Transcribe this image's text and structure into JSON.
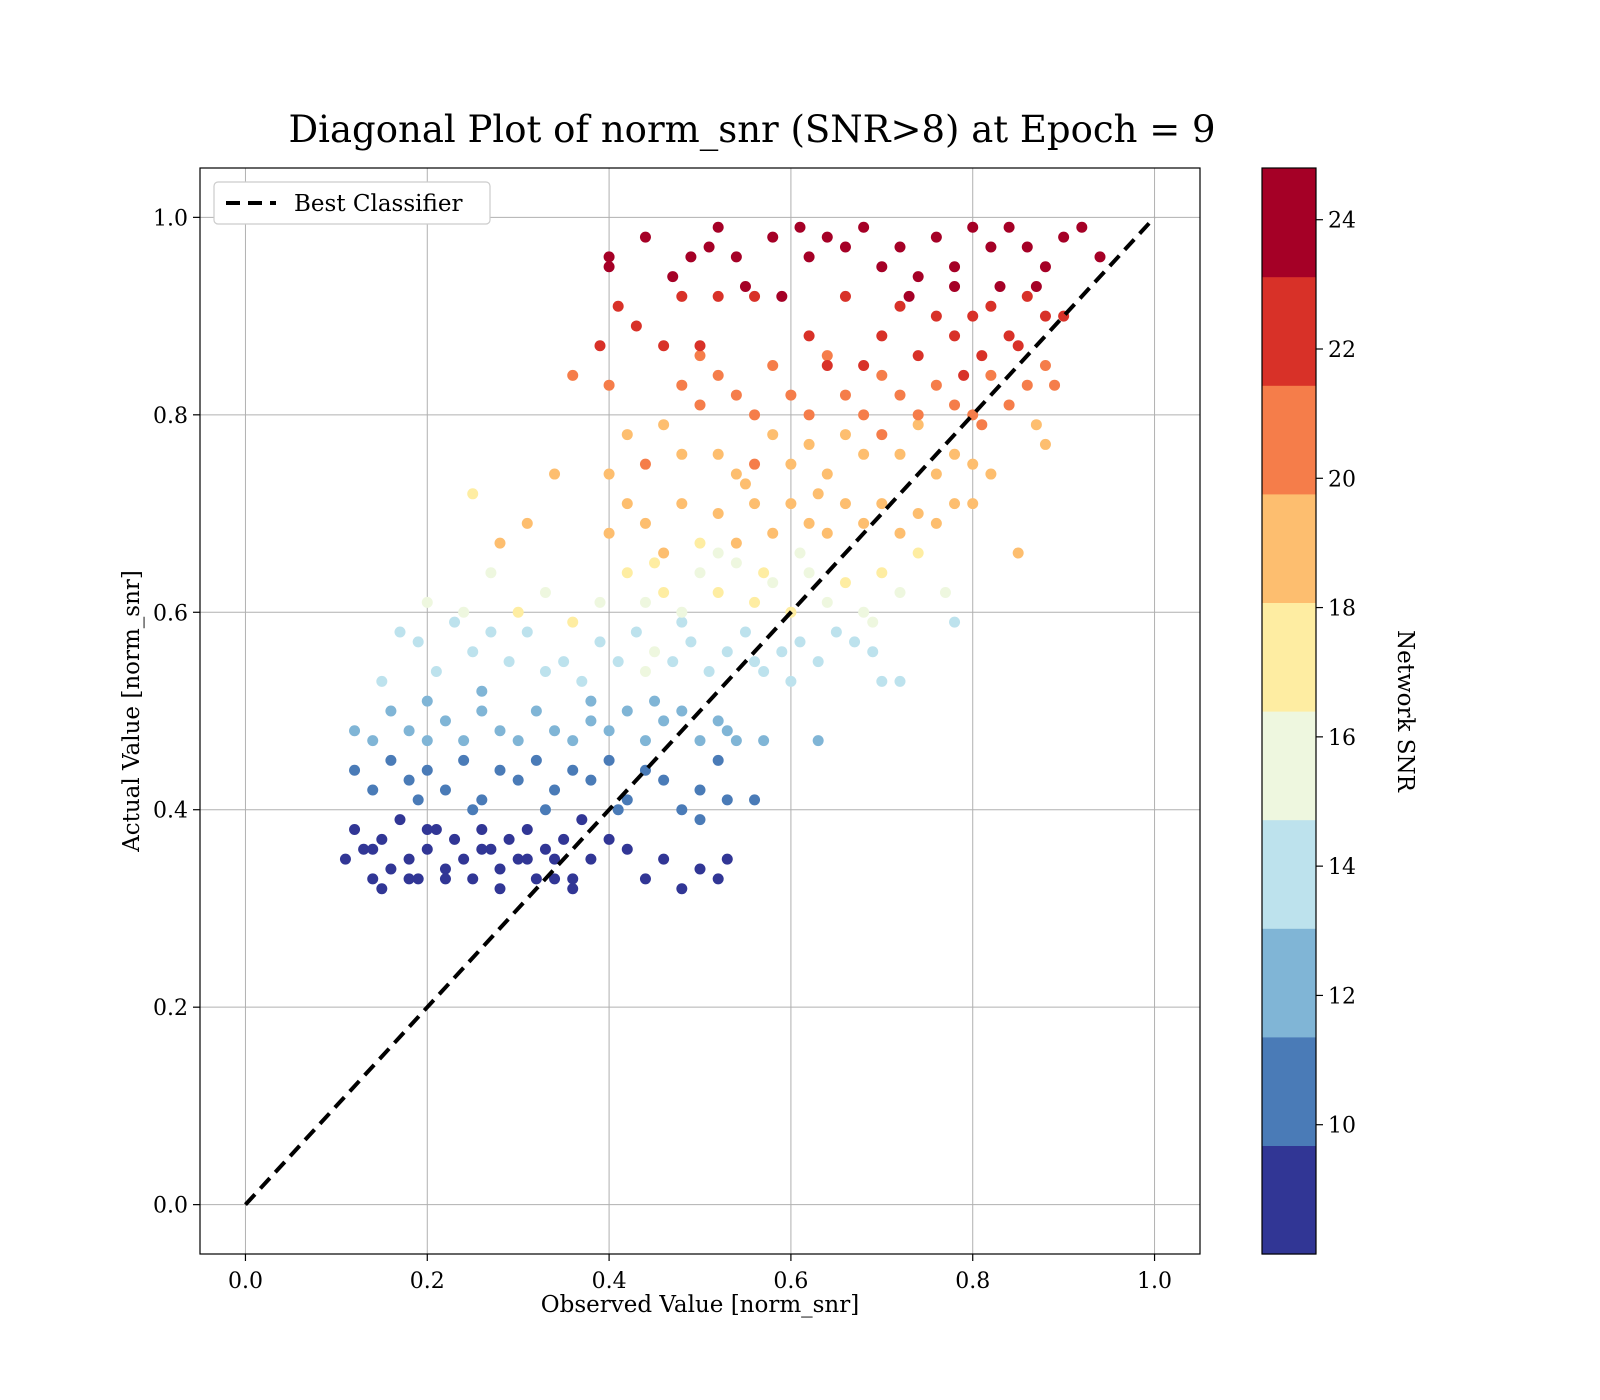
{
  "chart_data": {
    "type": "scatter",
    "title": "Diagonal Plot of norm_snr (SNR>8) at Epoch = 9",
    "xlabel": "Observed Value [norm_snr]",
    "ylabel": "Actual Value [norm_snr]",
    "xlim": [
      -0.05,
      1.05
    ],
    "ylim": [
      -0.05,
      1.05
    ],
    "xticks": [
      "0.0",
      "0.2",
      "0.4",
      "0.6",
      "0.8",
      "1.0"
    ],
    "yticks": [
      "0.0",
      "0.2",
      "0.4",
      "0.6",
      "0.8",
      "1.0"
    ],
    "grid": true,
    "legend": {
      "placement": "top-left",
      "entries": [
        "Best Classifier"
      ]
    },
    "reference_line": {
      "name": "Best Classifier",
      "style": "dashed",
      "color": "#000000",
      "x": [
        0.0,
        1.0
      ],
      "y": [
        0.0,
        1.0
      ]
    },
    "colorbar": {
      "label": "Network SNR",
      "range": [
        8,
        24.8
      ],
      "ticks": [
        "10",
        "12",
        "14",
        "16",
        "18",
        "20",
        "22",
        "24"
      ],
      "tick_values": [
        10,
        12,
        14,
        16,
        18,
        20,
        22,
        24
      ],
      "colors": [
        "#313695",
        "#4a7bb7",
        "#80b5d6",
        "#bde2ed",
        "#eef7df",
        "#feeda2",
        "#fdbe6f",
        "#f57d4a",
        "#d83128",
        "#a50026"
      ]
    },
    "points": [
      [
        0.11,
        0.35,
        8.5
      ],
      [
        0.12,
        0.38,
        8.4
      ],
      [
        0.13,
        0.36,
        8.6
      ],
      [
        0.14,
        0.33,
        8.3
      ],
      [
        0.15,
        0.37,
        8.7
      ],
      [
        0.16,
        0.34,
        8.2
      ],
      [
        0.17,
        0.39,
        8.8
      ],
      [
        0.18,
        0.35,
        8.5
      ],
      [
        0.19,
        0.33,
        8.4
      ],
      [
        0.2,
        0.36,
        8.9
      ],
      [
        0.21,
        0.38,
        8.6
      ],
      [
        0.22,
        0.34,
        8.3
      ],
      [
        0.23,
        0.37,
        8.7
      ],
      [
        0.24,
        0.35,
        8.5
      ],
      [
        0.25,
        0.33,
        8.2
      ],
      [
        0.26,
        0.38,
        8.8
      ],
      [
        0.27,
        0.36,
        8.4
      ],
      [
        0.28,
        0.34,
        8.9
      ],
      [
        0.29,
        0.37,
        8.6
      ],
      [
        0.3,
        0.35,
        8.3
      ],
      [
        0.31,
        0.38,
        8.7
      ],
      [
        0.32,
        0.33,
        8.5
      ],
      [
        0.33,
        0.36,
        8.8
      ],
      [
        0.34,
        0.35,
        8.4
      ],
      [
        0.35,
        0.37,
        8.6
      ],
      [
        0.36,
        0.33,
        8.2
      ],
      [
        0.37,
        0.39,
        8.9
      ],
      [
        0.38,
        0.35,
        8.5
      ],
      [
        0.4,
        0.37,
        8.7
      ],
      [
        0.42,
        0.36,
        8.3
      ],
      [
        0.44,
        0.33,
        8.6
      ],
      [
        0.46,
        0.35,
        8.4
      ],
      [
        0.48,
        0.32,
        8.8
      ],
      [
        0.5,
        0.34,
        8.5
      ],
      [
        0.52,
        0.33,
        8.2
      ],
      [
        0.53,
        0.35,
        8.7
      ],
      [
        0.15,
        0.32,
        8.3
      ],
      [
        0.18,
        0.33,
        8.6
      ],
      [
        0.22,
        0.33,
        8.4
      ],
      [
        0.28,
        0.32,
        8.5
      ],
      [
        0.34,
        0.33,
        8.7
      ],
      [
        0.36,
        0.32,
        8.3
      ],
      [
        0.14,
        0.36,
        8.9
      ],
      [
        0.2,
        0.38,
        8.4
      ],
      [
        0.26,
        0.36,
        8.6
      ],
      [
        0.31,
        0.35,
        8.8
      ],
      [
        0.12,
        0.44,
        10.1
      ],
      [
        0.14,
        0.42,
        10.5
      ],
      [
        0.16,
        0.45,
        10.3
      ],
      [
        0.18,
        0.43,
        10.7
      ],
      [
        0.2,
        0.44,
        10.2
      ],
      [
        0.22,
        0.42,
        10.8
      ],
      [
        0.24,
        0.45,
        10.4
      ],
      [
        0.26,
        0.41,
        10.6
      ],
      [
        0.28,
        0.44,
        10.1
      ],
      [
        0.3,
        0.43,
        10.9
      ],
      [
        0.32,
        0.45,
        10.3
      ],
      [
        0.34,
        0.42,
        10.5
      ],
      [
        0.36,
        0.44,
        10.7
      ],
      [
        0.38,
        0.43,
        10.2
      ],
      [
        0.4,
        0.45,
        10.6
      ],
      [
        0.42,
        0.41,
        10.4
      ],
      [
        0.44,
        0.44,
        10.8
      ],
      [
        0.46,
        0.43,
        10.3
      ],
      [
        0.48,
        0.4,
        10.5
      ],
      [
        0.5,
        0.42,
        10.7
      ],
      [
        0.52,
        0.45,
        10.2
      ],
      [
        0.53,
        0.41,
        10.6
      ],
      [
        0.56,
        0.41,
        10.4
      ],
      [
        0.19,
        0.41,
        10.9
      ],
      [
        0.25,
        0.4,
        10.3
      ],
      [
        0.33,
        0.4,
        10.6
      ],
      [
        0.41,
        0.4,
        10.2
      ],
      [
        0.5,
        0.39,
        10.8
      ],
      [
        0.12,
        0.48,
        12.0
      ],
      [
        0.14,
        0.47,
        12.4
      ],
      [
        0.16,
        0.5,
        12.2
      ],
      [
        0.18,
        0.48,
        12.6
      ],
      [
        0.2,
        0.47,
        12.1
      ],
      [
        0.22,
        0.49,
        12.7
      ],
      [
        0.24,
        0.47,
        12.3
      ],
      [
        0.26,
        0.5,
        12.5
      ],
      [
        0.28,
        0.48,
        12.0
      ],
      [
        0.3,
        0.47,
        12.8
      ],
      [
        0.32,
        0.5,
        12.2
      ],
      [
        0.34,
        0.48,
        12.4
      ],
      [
        0.36,
        0.47,
        12.6
      ],
      [
        0.38,
        0.49,
        12.1
      ],
      [
        0.4,
        0.48,
        12.5
      ],
      [
        0.42,
        0.5,
        12.3
      ],
      [
        0.44,
        0.47,
        12.7
      ],
      [
        0.46,
        0.49,
        12.2
      ],
      [
        0.48,
        0.5,
        12.4
      ],
      [
        0.5,
        0.47,
        12.6
      ],
      [
        0.52,
        0.49,
        12.1
      ],
      [
        0.54,
        0.47,
        12.5
      ],
      [
        0.57,
        0.47,
        12.3
      ],
      [
        0.63,
        0.47,
        12.8
      ],
      [
        0.2,
        0.51,
        12.2
      ],
      [
        0.26,
        0.52,
        12.6
      ],
      [
        0.38,
        0.51,
        12.4
      ],
      [
        0.45,
        0.51,
        12.7
      ],
      [
        0.53,
        0.48,
        12.0
      ],
      [
        0.15,
        0.53,
        14.0
      ],
      [
        0.17,
        0.58,
        14.3
      ],
      [
        0.19,
        0.57,
        14.1
      ],
      [
        0.21,
        0.54,
        14.5
      ],
      [
        0.23,
        0.59,
        14.2
      ],
      [
        0.25,
        0.56,
        14.6
      ],
      [
        0.27,
        0.58,
        14.4
      ],
      [
        0.29,
        0.55,
        14.0
      ],
      [
        0.31,
        0.58,
        14.7
      ],
      [
        0.33,
        0.54,
        14.3
      ],
      [
        0.35,
        0.55,
        14.5
      ],
      [
        0.37,
        0.53,
        14.1
      ],
      [
        0.39,
        0.57,
        14.6
      ],
      [
        0.41,
        0.55,
        14.2
      ],
      [
        0.43,
        0.58,
        14.4
      ],
      [
        0.45,
        0.56,
        14.8
      ],
      [
        0.47,
        0.55,
        14.3
      ],
      [
        0.49,
        0.57,
        14.5
      ],
      [
        0.51,
        0.54,
        14.1
      ],
      [
        0.53,
        0.56,
        14.7
      ],
      [
        0.55,
        0.58,
        14.2
      ],
      [
        0.57,
        0.54,
        14.6
      ],
      [
        0.59,
        0.56,
        14.4
      ],
      [
        0.61,
        0.57,
        14.0
      ],
      [
        0.63,
        0.55,
        14.5
      ],
      [
        0.65,
        0.58,
        14.3
      ],
      [
        0.67,
        0.57,
        14.7
      ],
      [
        0.69,
        0.56,
        14.1
      ],
      [
        0.7,
        0.53,
        14.4
      ],
      [
        0.72,
        0.53,
        14.6
      ],
      [
        0.78,
        0.59,
        14.2
      ],
      [
        0.44,
        0.54,
        14.8
      ],
      [
        0.48,
        0.59,
        14.3
      ],
      [
        0.56,
        0.55,
        14.5
      ],
      [
        0.6,
        0.53,
        14.1
      ],
      [
        0.2,
        0.61,
        16.0
      ],
      [
        0.24,
        0.6,
        16.4
      ],
      [
        0.27,
        0.64,
        16.2
      ],
      [
        0.3,
        0.6,
        16.6
      ],
      [
        0.33,
        0.62,
        16.1
      ],
      [
        0.36,
        0.59,
        16.7
      ],
      [
        0.39,
        0.61,
        16.3
      ],
      [
        0.42,
        0.64,
        16.5
      ],
      [
        0.44,
        0.61,
        16.0
      ],
      [
        0.46,
        0.62,
        16.8
      ],
      [
        0.48,
        0.6,
        16.2
      ],
      [
        0.5,
        0.64,
        16.4
      ],
      [
        0.52,
        0.62,
        16.6
      ],
      [
        0.54,
        0.65,
        16.1
      ],
      [
        0.56,
        0.61,
        16.5
      ],
      [
        0.58,
        0.63,
        16.3
      ],
      [
        0.6,
        0.6,
        16.7
      ],
      [
        0.62,
        0.64,
        16.2
      ],
      [
        0.64,
        0.61,
        16.4
      ],
      [
        0.66,
        0.63,
        16.6
      ],
      [
        0.68,
        0.6,
        16.1
      ],
      [
        0.7,
        0.64,
        16.5
      ],
      [
        0.72,
        0.62,
        16.3
      ],
      [
        0.74,
        0.66,
        16.7
      ],
      [
        0.77,
        0.62,
        16.2
      ],
      [
        0.69,
        0.59,
        16.4
      ],
      [
        0.45,
        0.65,
        16.8
      ],
      [
        0.52,
        0.66,
        16.3
      ],
      [
        0.57,
        0.64,
        16.5
      ],
      [
        0.61,
        0.66,
        16.1
      ],
      [
        0.25,
        0.72,
        18.0
      ],
      [
        0.28,
        0.67,
        18.4
      ],
      [
        0.31,
        0.69,
        18.2
      ],
      [
        0.4,
        0.68,
        18.6
      ],
      [
        0.42,
        0.71,
        18.1
      ],
      [
        0.44,
        0.69,
        18.7
      ],
      [
        0.46,
        0.66,
        18.3
      ],
      [
        0.48,
        0.71,
        18.5
      ],
      [
        0.5,
        0.67,
        18.0
      ],
      [
        0.52,
        0.7,
        18.8
      ],
      [
        0.54,
        0.67,
        18.2
      ],
      [
        0.56,
        0.71,
        18.4
      ],
      [
        0.58,
        0.68,
        18.6
      ],
      [
        0.6,
        0.71,
        18.1
      ],
      [
        0.62,
        0.69,
        18.5
      ],
      [
        0.64,
        0.68,
        18.3
      ],
      [
        0.66,
        0.71,
        18.7
      ],
      [
        0.68,
        0.69,
        18.2
      ],
      [
        0.7,
        0.71,
        18.4
      ],
      [
        0.72,
        0.68,
        18.6
      ],
      [
        0.74,
        0.7,
        18.1
      ],
      [
        0.76,
        0.69,
        18.5
      ],
      [
        0.78,
        0.71,
        18.3
      ],
      [
        0.85,
        0.66,
        18.4
      ],
      [
        0.55,
        0.73,
        18.2
      ],
      [
        0.63,
        0.72,
        18.6
      ],
      [
        0.34,
        0.74,
        19.3
      ],
      [
        0.4,
        0.74,
        19.6
      ],
      [
        0.42,
        0.78,
        19.4
      ],
      [
        0.44,
        0.75,
        19.8
      ],
      [
        0.46,
        0.79,
        19.2
      ],
      [
        0.48,
        0.76,
        19.7
      ],
      [
        0.52,
        0.76,
        19.5
      ],
      [
        0.54,
        0.74,
        19.3
      ],
      [
        0.56,
        0.75,
        19.8
      ],
      [
        0.58,
        0.78,
        19.4
      ],
      [
        0.6,
        0.75,
        19.6
      ],
      [
        0.62,
        0.77,
        19.2
      ],
      [
        0.64,
        0.74,
        19.7
      ],
      [
        0.66,
        0.78,
        19.5
      ],
      [
        0.68,
        0.76,
        19.3
      ],
      [
        0.7,
        0.78,
        19.8
      ],
      [
        0.72,
        0.76,
        19.4
      ],
      [
        0.74,
        0.79,
        19.6
      ],
      [
        0.76,
        0.74,
        19.2
      ],
      [
        0.78,
        0.76,
        19.5
      ],
      [
        0.8,
        0.75,
        19.7
      ],
      [
        0.82,
        0.74,
        19.3
      ],
      [
        0.87,
        0.79,
        19.6
      ],
      [
        0.88,
        0.77,
        19.4
      ],
      [
        0.8,
        0.71,
        19.2
      ],
      [
        0.36,
        0.84,
        20.3
      ],
      [
        0.4,
        0.83,
        20.6
      ],
      [
        0.48,
        0.83,
        20.4
      ],
      [
        0.5,
        0.86,
        20.8
      ],
      [
        0.5,
        0.81,
        20.2
      ],
      [
        0.52,
        0.84,
        20.7
      ],
      [
        0.54,
        0.82,
        20.5
      ],
      [
        0.56,
        0.8,
        20.3
      ],
      [
        0.58,
        0.85,
        20.8
      ],
      [
        0.6,
        0.82,
        20.4
      ],
      [
        0.62,
        0.8,
        20.6
      ],
      [
        0.64,
        0.86,
        20.2
      ],
      [
        0.66,
        0.82,
        20.7
      ],
      [
        0.68,
        0.8,
        20.5
      ],
      [
        0.7,
        0.84,
        20.3
      ],
      [
        0.72,
        0.82,
        20.8
      ],
      [
        0.74,
        0.8,
        20.4
      ],
      [
        0.76,
        0.83,
        20.6
      ],
      [
        0.78,
        0.81,
        20.2
      ],
      [
        0.8,
        0.8,
        20.7
      ],
      [
        0.82,
        0.84,
        20.5
      ],
      [
        0.84,
        0.81,
        20.3
      ],
      [
        0.86,
        0.83,
        20.6
      ],
      [
        0.88,
        0.85,
        20.4
      ],
      [
        0.89,
        0.83,
        20.8
      ],
      [
        0.81,
        0.79,
        20.5
      ],
      [
        0.39,
        0.87,
        22.2
      ],
      [
        0.41,
        0.91,
        22.5
      ],
      [
        0.43,
        0.89,
        22.3
      ],
      [
        0.46,
        0.87,
        22.7
      ],
      [
        0.48,
        0.92,
        22.1
      ],
      [
        0.5,
        0.87,
        22.6
      ],
      [
        0.52,
        0.92,
        22.4
      ],
      [
        0.56,
        0.92,
        22.2
      ],
      [
        0.62,
        0.88,
        22.7
      ],
      [
        0.64,
        0.85,
        22.3
      ],
      [
        0.66,
        0.92,
        22.5
      ],
      [
        0.68,
        0.85,
        22.1
      ],
      [
        0.7,
        0.88,
        22.6
      ],
      [
        0.72,
        0.91,
        22.4
      ],
      [
        0.74,
        0.86,
        22.2
      ],
      [
        0.76,
        0.9,
        22.7
      ],
      [
        0.78,
        0.88,
        22.3
      ],
      [
        0.8,
        0.9,
        22.5
      ],
      [
        0.81,
        0.86,
        22.1
      ],
      [
        0.82,
        0.91,
        22.6
      ],
      [
        0.84,
        0.88,
        22.4
      ],
      [
        0.86,
        0.92,
        22.2
      ],
      [
        0.88,
        0.9,
        22.7
      ],
      [
        0.9,
        0.9,
        22.3
      ],
      [
        0.79,
        0.84,
        22.5
      ],
      [
        0.85,
        0.87,
        22.4
      ],
      [
        0.4,
        0.96,
        24.0
      ],
      [
        0.4,
        0.95,
        24.3
      ],
      [
        0.44,
        0.98,
        24.1
      ],
      [
        0.47,
        0.94,
        24.5
      ],
      [
        0.49,
        0.96,
        24.2
      ],
      [
        0.51,
        0.97,
        24.6
      ],
      [
        0.52,
        0.99,
        24.4
      ],
      [
        0.54,
        0.96,
        24.0
      ],
      [
        0.55,
        0.93,
        24.7
      ],
      [
        0.58,
        0.98,
        24.3
      ],
      [
        0.61,
        0.99,
        24.5
      ],
      [
        0.62,
        0.96,
        24.1
      ],
      [
        0.64,
        0.98,
        24.6
      ],
      [
        0.66,
        0.97,
        24.2
      ],
      [
        0.68,
        0.99,
        24.4
      ],
      [
        0.7,
        0.95,
        24.0
      ],
      [
        0.72,
        0.97,
        24.7
      ],
      [
        0.74,
        0.94,
        24.3
      ],
      [
        0.76,
        0.98,
        24.5
      ],
      [
        0.78,
        0.95,
        24.1
      ],
      [
        0.8,
        0.99,
        24.6
      ],
      [
        0.82,
        0.97,
        24.2
      ],
      [
        0.84,
        0.99,
        24.4
      ],
      [
        0.86,
        0.97,
        24.0
      ],
      [
        0.88,
        0.95,
        24.7
      ],
      [
        0.9,
        0.98,
        24.3
      ],
      [
        0.92,
        0.99,
        24.5
      ],
      [
        0.94,
        0.96,
        24.1
      ],
      [
        0.78,
        0.93,
        24.6
      ],
      [
        0.83,
        0.93,
        24.2
      ],
      [
        0.87,
        0.93,
        24.4
      ],
      [
        0.73,
        0.92,
        24.0
      ],
      [
        0.59,
        0.92,
        24.5
      ]
    ]
  }
}
